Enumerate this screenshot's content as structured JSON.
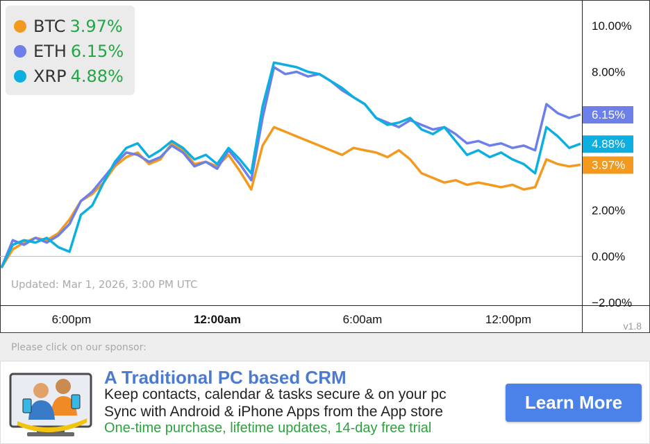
{
  "chart_data": {
    "type": "line",
    "x_ticks": [
      "6:00pm",
      "12:00am",
      "6:00am",
      "12:00pm"
    ],
    "x_tick_bold": "12:00am",
    "y_ticks": [
      "10.00%",
      "8.00%",
      "2.00%",
      "0.00%",
      "−2.00%"
    ],
    "ylim": [
      -2,
      11
    ],
    "series": [
      {
        "name": "BTC",
        "color": "#f39a1e",
        "change": "3.97%",
        "badge": "3.97%",
        "values": [
          -0.5,
          0.3,
          0.6,
          0.8,
          0.7,
          1.0,
          1.6,
          2.4,
          2.7,
          3.2,
          3.9,
          4.3,
          4.5,
          4.0,
          4.2,
          4.9,
          4.6,
          4.0,
          4.1,
          3.9,
          4.4,
          3.7,
          2.9,
          4.8,
          5.6,
          5.4,
          5.2,
          5.0,
          4.8,
          4.6,
          4.4,
          4.7,
          4.6,
          4.5,
          4.3,
          4.6,
          4.2,
          3.6,
          3.4,
          3.2,
          3.3,
          3.1,
          3.2,
          3.1,
          3.0,
          3.1,
          2.9,
          3.0,
          4.2,
          4.0,
          3.9,
          3.97
        ]
      },
      {
        "name": "ETH",
        "color": "#6d7fe8",
        "change": "6.15%",
        "badge": "6.15%",
        "values": [
          -0.5,
          0.7,
          0.5,
          0.8,
          0.6,
          0.9,
          1.4,
          2.4,
          2.8,
          3.4,
          4.0,
          4.5,
          4.4,
          4.1,
          4.3,
          4.8,
          4.5,
          3.9,
          4.1,
          3.8,
          4.6,
          4.0,
          3.3,
          6.0,
          8.2,
          7.9,
          8.0,
          7.8,
          7.9,
          7.6,
          7.2,
          6.9,
          6.6,
          6.0,
          5.8,
          5.6,
          5.9,
          5.7,
          5.5,
          5.6,
          5.3,
          4.9,
          5.0,
          4.8,
          4.9,
          4.7,
          4.8,
          4.6,
          6.6,
          6.2,
          6.0,
          6.15
        ]
      },
      {
        "name": "XRP",
        "color": "#0cafe0",
        "change": "4.88%",
        "badge": "4.88%",
        "values": [
          -0.5,
          0.5,
          0.7,
          0.6,
          0.8,
          0.4,
          0.2,
          1.8,
          2.2,
          3.2,
          4.1,
          4.7,
          4.9,
          4.3,
          4.6,
          5.0,
          4.7,
          4.2,
          4.4,
          4.0,
          4.7,
          4.2,
          3.6,
          6.5,
          8.4,
          8.3,
          8.2,
          8.0,
          7.9,
          7.6,
          7.3,
          6.9,
          6.6,
          6.0,
          5.7,
          5.8,
          6.0,
          5.5,
          5.3,
          5.6,
          5.0,
          4.4,
          4.6,
          4.3,
          4.5,
          4.2,
          4.0,
          3.6,
          5.6,
          5.2,
          4.7,
          4.88
        ]
      }
    ]
  },
  "updated_text": "Updated: Mar 1, 2026, 3:00 PM UTC",
  "version": "v1.8",
  "sponsor": {
    "note": "Please click on our sponsor:",
    "title": "A Traditional PC based CRM",
    "line1": "Keep contacts, calendar & tasks secure & on your pc",
    "line2": "Sync with Android & iPhone Apps from the App store",
    "line3": "One-time purchase, lifetime updates, 14-day free trial",
    "button_label": "Learn More",
    "button_color": "#4b82ea"
  }
}
